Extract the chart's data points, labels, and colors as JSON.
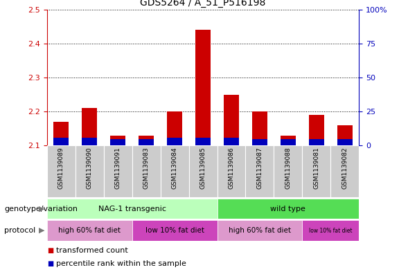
{
  "title": "GDS5264 / A_51_P516198",
  "samples": [
    "GSM1139089",
    "GSM1139090",
    "GSM1139091",
    "GSM1139083",
    "GSM1139084",
    "GSM1139085",
    "GSM1139086",
    "GSM1139087",
    "GSM1139088",
    "GSM1139081",
    "GSM1139082"
  ],
  "red_values": [
    2.17,
    2.21,
    2.13,
    2.13,
    2.2,
    2.44,
    2.25,
    2.2,
    2.13,
    2.19,
    2.16
  ],
  "blue_values": [
    0.023,
    0.023,
    0.018,
    0.018,
    0.023,
    0.023,
    0.023,
    0.018,
    0.018,
    0.018,
    0.018
  ],
  "ymin": 2.1,
  "ymax": 2.5,
  "y_ticks": [
    2.1,
    2.2,
    2.3,
    2.4,
    2.5
  ],
  "y2_ticks": [
    0,
    25,
    50,
    75,
    100
  ],
  "red_color": "#cc0000",
  "blue_color": "#0000bb",
  "tick_color_left": "#cc0000",
  "tick_color_right": "#0000bb",
  "bar_width": 0.55,
  "sample_bg": "#cccccc",
  "genotype_nag_color": "#bbffbb",
  "genotype_wt_color": "#55dd55",
  "protocol_high_color": "#dd99cc",
  "protocol_low_color": "#cc44bb",
  "title_fontsize": 10,
  "row_label_genotype": "genotype/variation",
  "row_label_protocol": "protocol",
  "legend_red_label": "transformed count",
  "legend_blue_label": "percentile rank within the sample"
}
